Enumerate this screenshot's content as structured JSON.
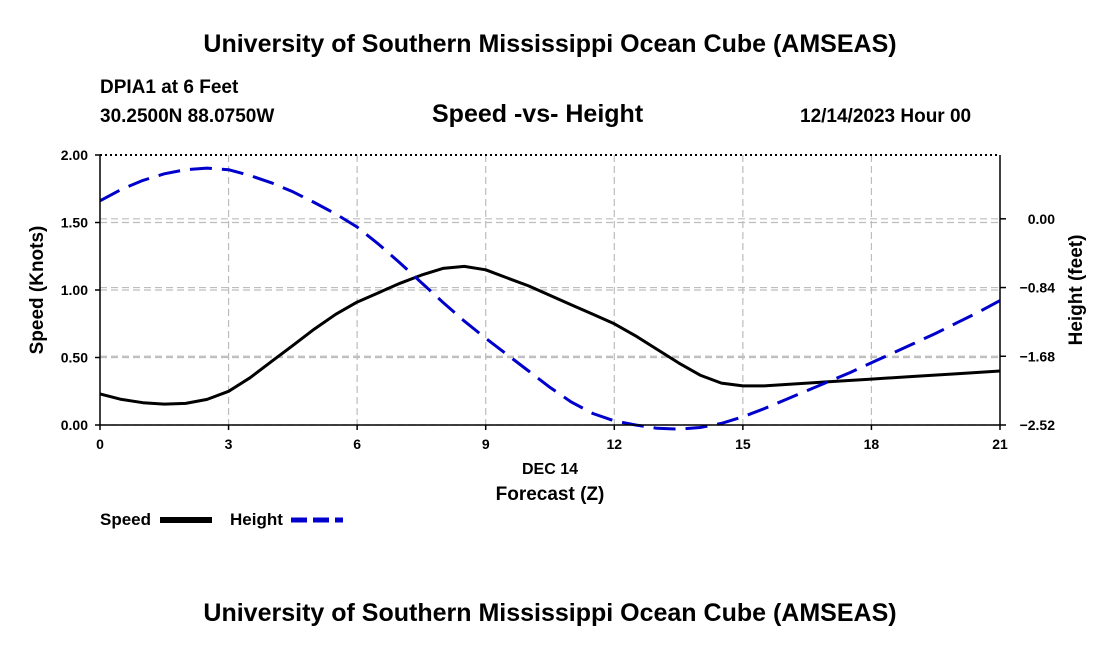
{
  "page_title": "University of Southern Mississippi Ocean Cube (AMSEAS)",
  "footer_title": "University of Southern Mississippi Ocean Cube (AMSEAS)",
  "station": {
    "name": "DPIA1 at 6 Feet",
    "coords": "30.2500N  88.0750W",
    "date": "12/14/2023 Hour 00"
  },
  "colors": {
    "speed": "#000000",
    "height": "#0000cc",
    "grid": "#bdbdbd"
  },
  "chart_data": {
    "type": "line",
    "title": "Speed -vs- Height",
    "xlabel": "Forecast (Z)",
    "x_date_label": "DEC 14",
    "ylabel_left": "Speed (Knots)",
    "ylabel_right": "Height (feet)",
    "xlim": [
      0,
      21
    ],
    "ylim_left": [
      0,
      2.0
    ],
    "ylim_right": [
      -2.52,
      0.78
    ],
    "x_ticks": [
      0,
      3,
      6,
      9,
      12,
      15,
      18,
      21
    ],
    "x_tick_labels": [
      "0",
      "3",
      "6",
      "9",
      "12",
      "15",
      "18",
      "21"
    ],
    "left_ticks": [
      0.0,
      0.5,
      1.0,
      1.5,
      2.0
    ],
    "left_tick_labels": [
      "0.00",
      "0.50",
      "1.00",
      "1.50",
      "2.00"
    ],
    "right_ticks": [
      -2.52,
      -1.68,
      -0.84,
      0.0
    ],
    "right_tick_labels": [
      "−2.52",
      "−1.68",
      "−0.84",
      "0.00"
    ],
    "legend": [
      "Speed",
      "Height"
    ],
    "series": [
      {
        "name": "Speed",
        "axis": "left",
        "style": "solid",
        "x": [
          0,
          0.5,
          1,
          1.5,
          2,
          2.5,
          3,
          3.5,
          4,
          4.5,
          5,
          5.5,
          6,
          6.5,
          7,
          7.5,
          8,
          8.5,
          9,
          9.5,
          10,
          10.5,
          11,
          11.5,
          12,
          12.5,
          13,
          13.5,
          14,
          14.5,
          15,
          15.5,
          16,
          17,
          18,
          19,
          20,
          21
        ],
        "values": [
          0.23,
          0.19,
          0.165,
          0.155,
          0.16,
          0.19,
          0.25,
          0.35,
          0.47,
          0.59,
          0.71,
          0.82,
          0.91,
          0.98,
          1.05,
          1.11,
          1.16,
          1.175,
          1.15,
          1.09,
          1.03,
          0.96,
          0.89,
          0.82,
          0.75,
          0.66,
          0.56,
          0.46,
          0.37,
          0.31,
          0.29,
          0.29,
          0.3,
          0.32,
          0.34,
          0.36,
          0.38,
          0.4
        ]
      },
      {
        "name": "Height",
        "axis": "right",
        "style": "dashed",
        "x": [
          0,
          0.5,
          1,
          1.5,
          2,
          2.5,
          3,
          3.5,
          4,
          4.5,
          5,
          5.5,
          6,
          6.5,
          7,
          7.5,
          8,
          8.5,
          9,
          9.5,
          10,
          10.5,
          11,
          11.5,
          12,
          12.5,
          13,
          13.5,
          14,
          14.5,
          15,
          15.5,
          16,
          16.5,
          17,
          17.5,
          18,
          18.5,
          19,
          19.5,
          20,
          20.5,
          21
        ],
        "values": [
          0.22,
          0.36,
          0.47,
          0.55,
          0.6,
          0.62,
          0.6,
          0.53,
          0.44,
          0.33,
          0.2,
          0.06,
          -0.1,
          -0.31,
          -0.54,
          -0.78,
          -1.02,
          -1.25,
          -1.46,
          -1.66,
          -1.86,
          -2.06,
          -2.24,
          -2.38,
          -2.47,
          -2.52,
          -2.56,
          -2.57,
          -2.55,
          -2.5,
          -2.42,
          -2.32,
          -2.21,
          -2.1,
          -1.99,
          -1.88,
          -1.76,
          -1.64,
          -1.52,
          -1.4,
          -1.27,
          -1.14,
          -1.0
        ]
      }
    ]
  }
}
